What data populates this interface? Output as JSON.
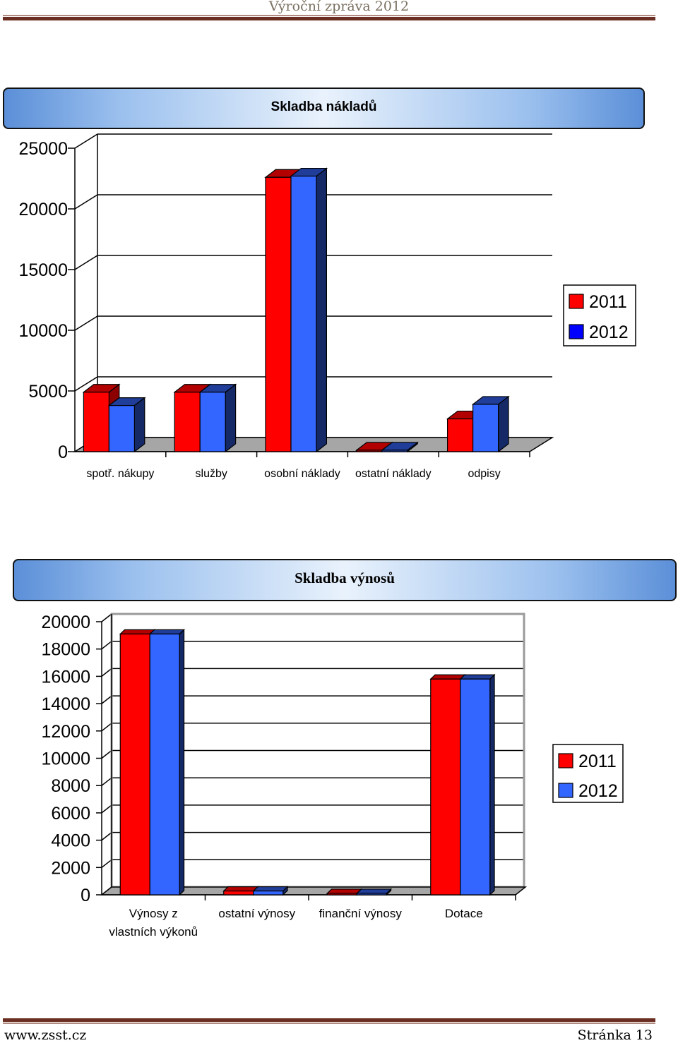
{
  "header": {
    "title": "Výroční zpráva 2012"
  },
  "footer": {
    "left": "www.zsst.cz",
    "right": "Stránka 13"
  },
  "colors": {
    "series_2011": "#ff0000",
    "series_2012": "#3366ff",
    "floor": "#a6a6a6"
  },
  "chart_data": [
    {
      "type": "bar",
      "title": "Skladba nákladů",
      "categories": [
        "spotř. nákupy",
        "služby",
        "osobní náklady",
        "ostatní náklady",
        "odpisy"
      ],
      "series": [
        {
          "name": "2011",
          "values": [
            4900,
            4900,
            22600,
            80,
            2700
          ]
        },
        {
          "name": "2012",
          "values": [
            3800,
            4900,
            22700,
            60,
            3900
          ]
        }
      ],
      "ylim": [
        0,
        25000
      ],
      "yticks": [
        "0",
        "5000",
        "10000",
        "15000",
        "20000",
        "25000"
      ],
      "legend": "right",
      "grid": true
    },
    {
      "type": "bar",
      "title": "Skladba výnosů",
      "categories": [
        "Výnosy z vlastních výkonů",
        "ostatní výnosy",
        "finanční výnosy",
        "Dotace"
      ],
      "category_lines": [
        [
          "Výnosy z",
          "vlastních výkonů"
        ],
        [
          "ostatní výnosy"
        ],
        [
          "finanční výnosy"
        ],
        [
          "Dotace"
        ]
      ],
      "series": [
        {
          "name": "2011",
          "values": [
            19100,
            280,
            20,
            15800
          ]
        },
        {
          "name": "2012",
          "values": [
            19100,
            280,
            20,
            15800
          ]
        }
      ],
      "ylim": [
        0,
        20000
      ],
      "yticks": [
        "0",
        "2000",
        "4000",
        "6000",
        "8000",
        "10000",
        "12000",
        "14000",
        "16000",
        "18000",
        "20000"
      ],
      "legend": "right",
      "grid": true
    }
  ]
}
